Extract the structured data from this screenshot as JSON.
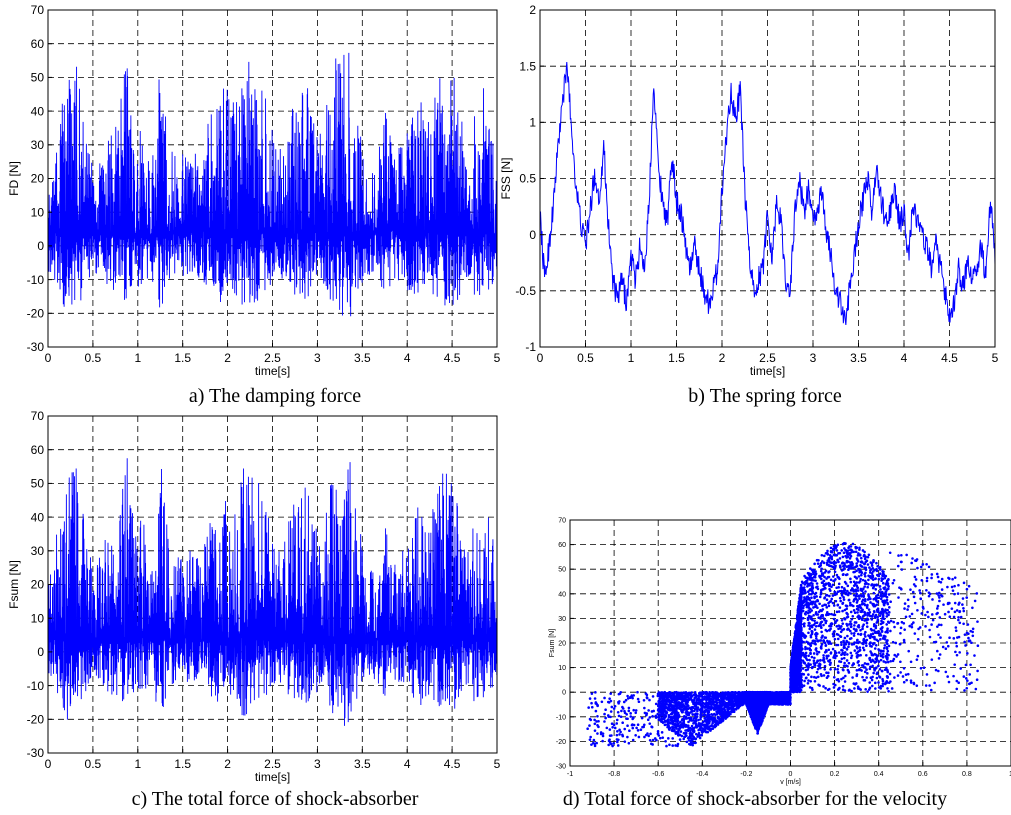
{
  "colors": {
    "series": "#0000ff",
    "axis": "#000000",
    "grid": "#000000",
    "background": "#ffffff"
  },
  "captions": [
    "a) The damping force",
    "b) The spring force",
    "c) The total force of shock-absorber",
    "d) Total force of shock-absorber for the velocity"
  ],
  "chart_data": [
    {
      "id": "a",
      "type": "line",
      "xlabel": "time[s]",
      "ylabel": "FD [N]",
      "xlim": [
        0,
        5
      ],
      "ylim": [
        -30,
        70
      ],
      "xticks": [
        0,
        0.5,
        1,
        1.5,
        2,
        2.5,
        3,
        3.5,
        4,
        4.5,
        5
      ],
      "yticks": [
        -30,
        -20,
        -10,
        0,
        10,
        20,
        30,
        40,
        50,
        60,
        70
      ],
      "grid": true,
      "signal": "high-frequency oscillation between about -24 and 63 N",
      "envelope": {
        "t": [
          0,
          0.1,
          0.2,
          0.25,
          0.3,
          0.4,
          0.5,
          0.6,
          0.7,
          0.8,
          0.88,
          0.95,
          1.05,
          1.15,
          1.25,
          1.35,
          1.5,
          1.65,
          1.75,
          1.85,
          1.95,
          2.05,
          2.15,
          2.25,
          2.35,
          2.45,
          2.55,
          2.65,
          2.75,
          2.85,
          2.95,
          3.05,
          3.15,
          3.25,
          3.35,
          3.45,
          3.55,
          3.65,
          3.75,
          3.85,
          3.95,
          4.05,
          4.15,
          4.25,
          4.35,
          4.45,
          4.55,
          4.65,
          4.75,
          4.85,
          5
        ],
        "max": [
          25,
          35,
          50,
          59,
          58,
          48,
          22,
          30,
          37,
          44,
          59,
          38,
          40,
          25,
          60,
          30,
          28,
          30,
          34,
          42,
          50,
          45,
          55,
          57,
          50,
          42,
          28,
          36,
          44,
          52,
          40,
          32,
          53,
          58,
          63,
          38,
          26,
          22,
          44,
          28,
          30,
          44,
          44,
          38,
          52,
          53,
          50,
          28,
          42,
          48,
          27
        ],
        "min": [
          -8,
          -12,
          -20,
          -24,
          -22,
          -16,
          -8,
          -10,
          -13,
          -15,
          -20,
          -12,
          -13,
          -9,
          -21,
          -10,
          -9,
          -10,
          -12,
          -14,
          -18,
          -15,
          -19,
          -19,
          -16,
          -13,
          -9,
          -12,
          -15,
          -17,
          -13,
          -11,
          -18,
          -20,
          -24,
          -13,
          -9,
          -8,
          -15,
          -10,
          -11,
          -15,
          -16,
          -13,
          -18,
          -19,
          -17,
          -10,
          -15,
          -16,
          -9
        ]
      }
    },
    {
      "id": "b",
      "type": "line",
      "xlabel": "time[s]",
      "ylabel": "FSS [N]",
      "xlim": [
        0,
        5
      ],
      "ylim": [
        -1,
        2
      ],
      "xticks": [
        0,
        0.5,
        1,
        1.5,
        2,
        2.5,
        3,
        3.5,
        4,
        4.5,
        5
      ],
      "yticks": [
        -1,
        -0.5,
        0,
        0.5,
        1,
        1.5,
        2
      ],
      "grid": true,
      "x": [
        0,
        0.05,
        0.1,
        0.15,
        0.2,
        0.25,
        0.3,
        0.35,
        0.4,
        0.45,
        0.5,
        0.55,
        0.6,
        0.65,
        0.7,
        0.75,
        0.8,
        0.85,
        0.9,
        0.95,
        1.0,
        1.05,
        1.1,
        1.15,
        1.2,
        1.25,
        1.3,
        1.35,
        1.4,
        1.45,
        1.5,
        1.55,
        1.6,
        1.65,
        1.7,
        1.75,
        1.8,
        1.85,
        1.9,
        1.95,
        2.0,
        2.05,
        2.1,
        2.15,
        2.2,
        2.25,
        2.3,
        2.35,
        2.4,
        2.45,
        2.5,
        2.55,
        2.6,
        2.65,
        2.7,
        2.75,
        2.8,
        2.85,
        2.9,
        2.95,
        3.0,
        3.05,
        3.1,
        3.15,
        3.2,
        3.25,
        3.3,
        3.35,
        3.4,
        3.45,
        3.5,
        3.55,
        3.6,
        3.65,
        3.7,
        3.75,
        3.8,
        3.85,
        3.9,
        3.95,
        4.0,
        4.05,
        4.1,
        4.15,
        4.2,
        4.25,
        4.3,
        4.35,
        4.4,
        4.45,
        4.5,
        4.55,
        4.6,
        4.65,
        4.7,
        4.75,
        4.8,
        4.85,
        4.9,
        4.95,
        5.0
      ],
      "y": [
        0.2,
        -0.4,
        -0.1,
        0.3,
        0.8,
        1.2,
        1.5,
        0.9,
        0.4,
        0.1,
        -0.1,
        0.2,
        0.55,
        0.3,
        0.8,
        0.1,
        -0.4,
        -0.6,
        -0.4,
        -0.6,
        -0.2,
        -0.4,
        -0.1,
        -0.3,
        0.3,
        1.4,
        0.6,
        0.3,
        0.1,
        0.7,
        0.3,
        0.2,
        -0.1,
        -0.3,
        -0.1,
        -0.3,
        -0.5,
        -0.6,
        -0.5,
        -0.3,
        0.4,
        0.9,
        1.3,
        1.0,
        1.3,
        0.4,
        -0.2,
        -0.5,
        -0.4,
        -0.3,
        0.2,
        -0.2,
        0.3,
        0.1,
        -0.4,
        -0.5,
        0.2,
        0.5,
        0.2,
        0.4,
        0.1,
        0.2,
        0.4,
        0.0,
        -0.2,
        -0.5,
        -0.6,
        -0.8,
        -0.5,
        -0.2,
        0.1,
        0.3,
        0.5,
        0.2,
        0.6,
        0.3,
        0.1,
        0.2,
        0.4,
        0.1,
        0.2,
        -0.2,
        0.3,
        0.1,
        0.0,
        -0.1,
        -0.3,
        -0.1,
        -0.3,
        -0.5,
        -0.7,
        -0.6,
        -0.3,
        -0.5,
        -0.2,
        -0.4,
        -0.3,
        -0.1,
        -0.4,
        0.3,
        -0.2
      ]
    },
    {
      "id": "c",
      "type": "line",
      "xlabel": "time[s]",
      "ylabel": "Fsum [N]",
      "xlim": [
        0,
        5
      ],
      "ylim": [
        -30,
        70
      ],
      "xticks": [
        0,
        0.5,
        1,
        1.5,
        2,
        2.5,
        3,
        3.5,
        4,
        4.5,
        5
      ],
      "yticks": [
        -30,
        -20,
        -10,
        0,
        10,
        20,
        30,
        40,
        50,
        60,
        70
      ],
      "grid": true,
      "signal": "high-frequency oscillation between about -24 and 63 N",
      "envelope": {
        "t": [
          0,
          0.1,
          0.2,
          0.25,
          0.3,
          0.4,
          0.5,
          0.6,
          0.7,
          0.8,
          0.88,
          0.95,
          1.05,
          1.15,
          1.25,
          1.35,
          1.5,
          1.65,
          1.75,
          1.85,
          1.95,
          2.05,
          2.15,
          2.25,
          2.35,
          2.45,
          2.55,
          2.65,
          2.75,
          2.85,
          2.95,
          3.05,
          3.15,
          3.25,
          3.35,
          3.45,
          3.55,
          3.65,
          3.75,
          3.85,
          3.95,
          4.05,
          4.15,
          4.25,
          4.35,
          4.45,
          4.55,
          4.65,
          4.75,
          4.85,
          5
        ],
        "max": [
          26,
          36,
          51,
          61,
          59,
          49,
          23,
          31,
          38,
          45,
          59,
          39,
          41,
          26,
          61,
          31,
          29,
          31,
          35,
          43,
          51,
          46,
          56,
          58,
          51,
          43,
          29,
          37,
          45,
          53,
          41,
          33,
          54,
          59,
          63,
          39,
          27,
          23,
          45,
          29,
          31,
          45,
          45,
          39,
          53,
          53,
          51,
          29,
          43,
          48,
          28
        ],
        "min": [
          -8,
          -12,
          -20,
          -22,
          -21,
          -15,
          -8,
          -10,
          -13,
          -14,
          -20,
          -12,
          -13,
          -9,
          -20,
          -10,
          -9,
          -10,
          -12,
          -14,
          -18,
          -15,
          -19,
          -19,
          -16,
          -13,
          -9,
          -12,
          -15,
          -17,
          -13,
          -11,
          -18,
          -20,
          -24,
          -13,
          -9,
          -8,
          -15,
          -10,
          -11,
          -15,
          -16,
          -13,
          -18,
          -19,
          -17,
          -10,
          -15,
          -16,
          -9
        ]
      }
    },
    {
      "id": "d",
      "type": "scatter",
      "xlabel": "v [m/s]",
      "ylabel": "Fsum [N]",
      "xlim": [
        -1,
        1
      ],
      "ylim": [
        -30,
        70
      ],
      "xticks": [
        -1,
        -0.8,
        -0.6,
        -0.4,
        -0.2,
        0,
        0.2,
        0.4,
        0.6,
        0.8,
        1
      ],
      "yticks": [
        -30,
        -20,
        -10,
        0,
        10,
        20,
        30,
        40,
        50,
        60,
        70
      ],
      "grid": true,
      "regions": [
        {
          "vmin": -0.92,
          "vmax": -0.5,
          "fmin": -22,
          "fmax": 0,
          "density": "sparse"
        },
        {
          "vmin": -0.6,
          "vmax": -0.2,
          "fmin": -22,
          "fmax": 0,
          "density": "dense"
        },
        {
          "vmin": -0.2,
          "vmax": 0,
          "fmin": -5,
          "fmax": 0,
          "density": "dense"
        },
        {
          "vmin": -0.2,
          "vmax": -0.1,
          "fmin": -17,
          "fmax": 0,
          "density": "dense"
        },
        {
          "vmin": 0,
          "vmax": 0.05,
          "fmin": 0,
          "fmax": 45,
          "density": "dense"
        },
        {
          "vmin": 0.05,
          "vmax": 0.45,
          "fmin": 0,
          "fmax": 61,
          "density": "dense"
        },
        {
          "vmin": 0.45,
          "vmax": 0.85,
          "fmin": 0,
          "fmax": 60,
          "density": "sparse"
        }
      ]
    }
  ]
}
